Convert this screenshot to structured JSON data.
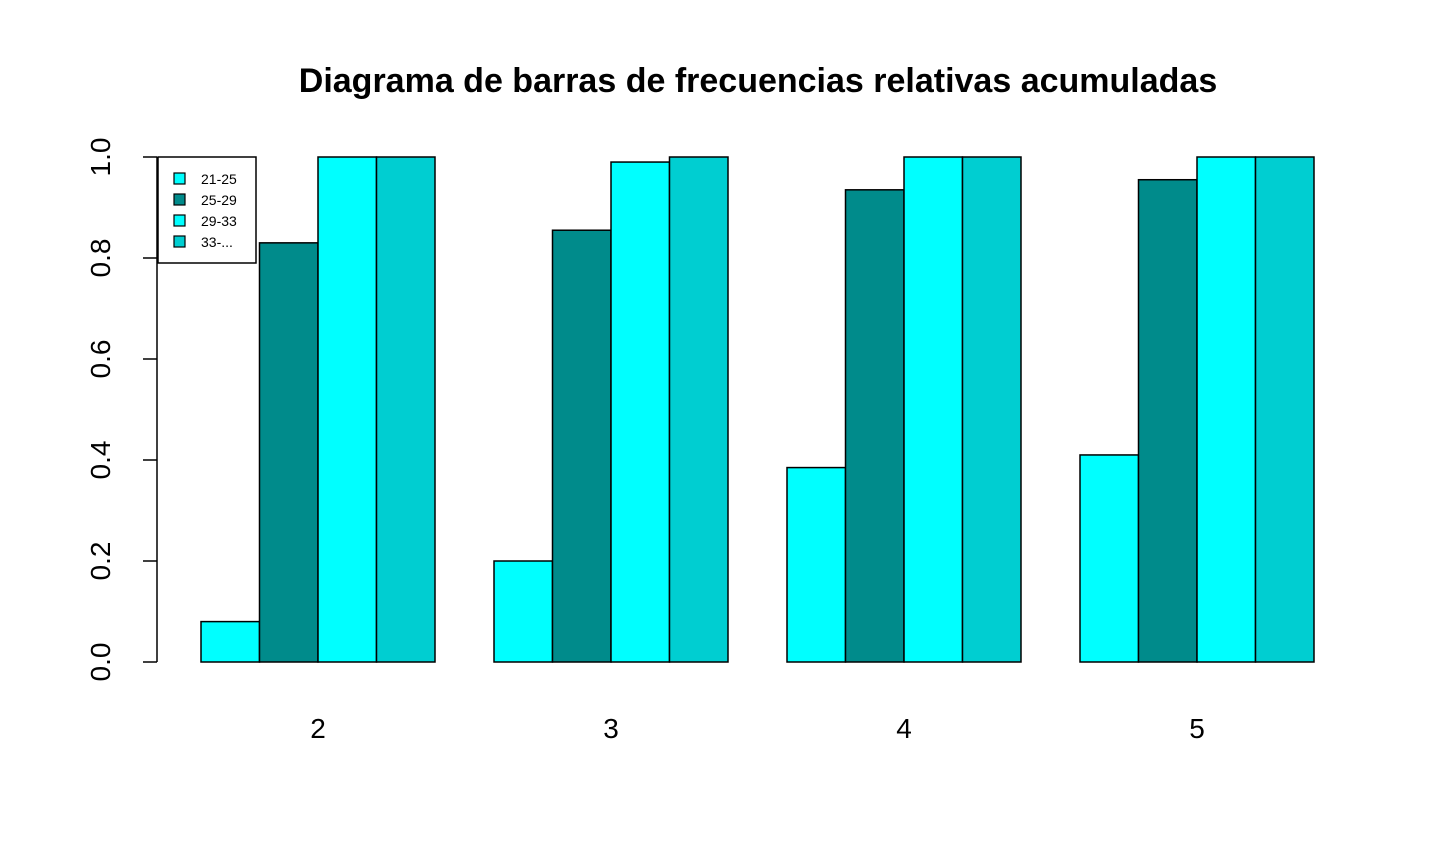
{
  "chart_data": {
    "type": "bar",
    "title": "Diagrama de barras de frecuencias relativas acumuladas",
    "xlabel": "",
    "ylabel": "",
    "categories": [
      "2",
      "3",
      "4",
      "5"
    ],
    "series": [
      {
        "name": "21-25",
        "color": "#00FFFF",
        "values": [
          0.08,
          0.2,
          0.385,
          0.41
        ]
      },
      {
        "name": "25-29",
        "color": "#008B8B",
        "values": [
          0.83,
          0.855,
          0.935,
          0.955
        ]
      },
      {
        "name": "29-33",
        "color": "#00FFFF",
        "values": [
          1.0,
          0.99,
          1.0,
          1.0
        ]
      },
      {
        "name": "33-...",
        "color": "#00CED1",
        "values": [
          1.0,
          1.0,
          1.0,
          1.0
        ]
      }
    ],
    "ylim": [
      0,
      1
    ],
    "yticks": [
      "0.0",
      "0.2",
      "0.4",
      "0.6",
      "0.8",
      "1.0"
    ],
    "grid": false,
    "legend_position": "top-left"
  }
}
